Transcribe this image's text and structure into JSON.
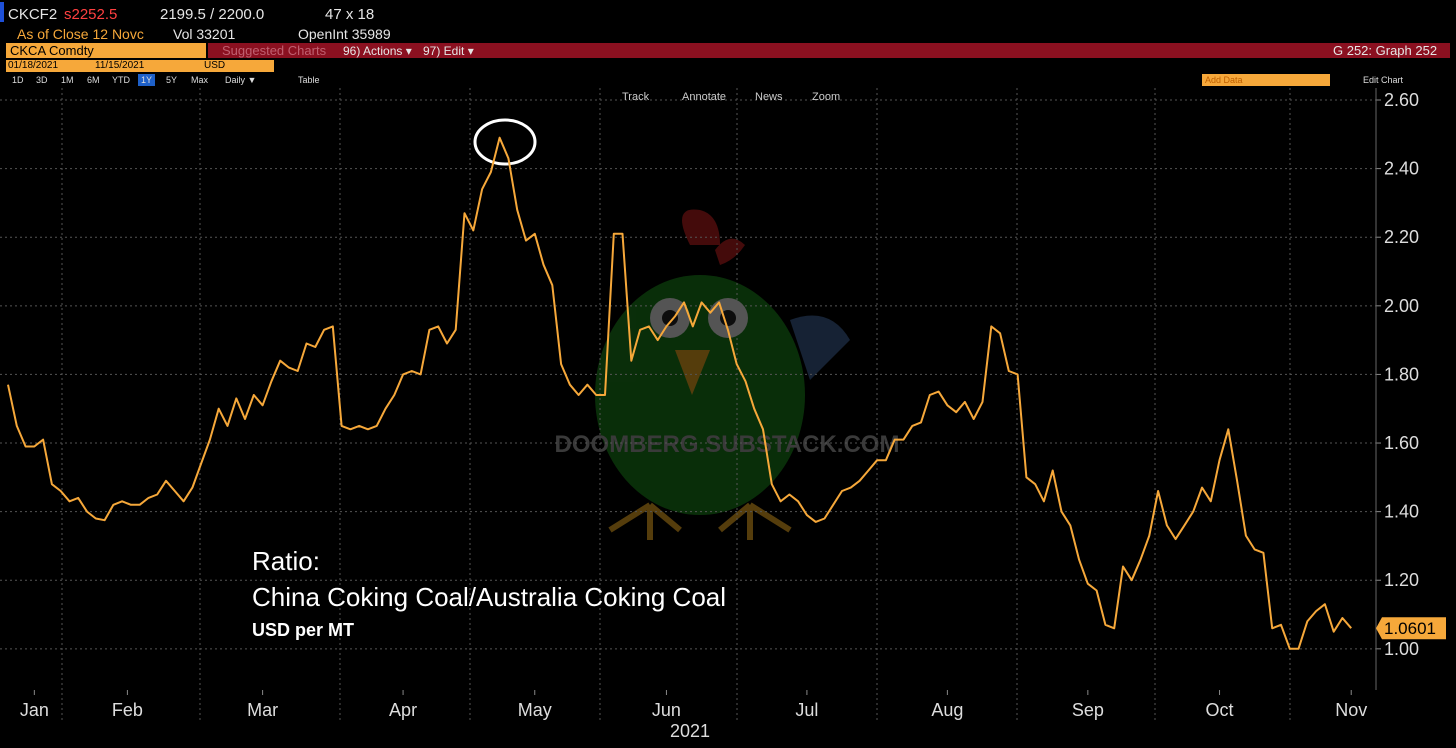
{
  "header": {
    "ticker": "CKCF2",
    "last": "s2252.5",
    "bid_ask": "2199.5 / 2200.0",
    "size": "47 x 18",
    "as_of": "As of Close 12 Novc",
    "vol": "Vol 33201",
    "open_int": "OpenInt 35989",
    "security": "CKCA Comdty",
    "suggested": "Suggested Charts",
    "actions": "96) Actions ▾",
    "edit": "97) Edit ▾",
    "graph": "G 252: Graph 252",
    "start_date": "01/18/2021",
    "end_date": "11/15/2021",
    "currency": "USD",
    "ranges": [
      "1D",
      "3D",
      "1M",
      "6M",
      "YTD",
      "1Y",
      "5Y",
      "Max"
    ],
    "period": "Daily ▼",
    "table": "Table",
    "add_data": "Add Data",
    "edit_chart": "Edit Chart"
  },
  "toolbar": [
    "Track",
    "Annotate",
    "News",
    "Zoom"
  ],
  "chart_data": {
    "type": "line",
    "annotation_title": "Ratio:",
    "title": "China Coking Coal/Australia Coking Coal",
    "subtitle": "USD per MT",
    "watermark": "DOOMBERG.SUBSTACK.COM",
    "xlabel": "2021",
    "color": "#f6a83a",
    "grid": true,
    "xlim": [
      0,
      154
    ],
    "xticks": [
      {
        "value": 3,
        "label": "Jan"
      },
      {
        "value": 13.6,
        "label": "Feb"
      },
      {
        "value": 29,
        "label": "Mar"
      },
      {
        "value": 45,
        "label": "Apr"
      },
      {
        "value": 60,
        "label": "May"
      },
      {
        "value": 75,
        "label": "Jun"
      },
      {
        "value": 91,
        "label": "Jul"
      },
      {
        "value": 107,
        "label": "Aug"
      },
      {
        "value": 123,
        "label": "Sep"
      },
      {
        "value": 138,
        "label": "Oct"
      },
      {
        "value": 153,
        "label": "Nov"
      }
    ],
    "ylim": [
      0.88,
      2.635
    ],
    "yticks": [
      {
        "value": 1,
        "label": "1.00"
      },
      {
        "value": 1.2,
        "label": "1.20"
      },
      {
        "value": 1.4,
        "label": "1.40"
      },
      {
        "value": 1.6,
        "label": "1.60"
      },
      {
        "value": 1.8,
        "label": "1.80"
      },
      {
        "value": 2,
        "label": "2.00"
      },
      {
        "value": 2.2,
        "label": "2.20"
      },
      {
        "value": 2.4,
        "label": "2.40"
      },
      {
        "value": 2.6,
        "label": "2.60"
      }
    ],
    "values": [
      1.77,
      1.65,
      1.59,
      1.59,
      1.61,
      1.48,
      1.46,
      1.43,
      1.44,
      1.4,
      1.38,
      1.375,
      1.42,
      1.43,
      1.42,
      1.42,
      1.44,
      1.45,
      1.49,
      1.46,
      1.43,
      1.47,
      1.54,
      1.61,
      1.7,
      1.65,
      1.73,
      1.67,
      1.74,
      1.71,
      1.78,
      1.84,
      1.82,
      1.81,
      1.89,
      1.88,
      1.93,
      1.94,
      1.65,
      1.64,
      1.65,
      1.64,
      1.65,
      1.7,
      1.74,
      1.8,
      1.81,
      1.8,
      1.93,
      1.94,
      1.89,
      1.93,
      2.27,
      2.22,
      2.34,
      2.39,
      2.49,
      2.43,
      2.28,
      2.19,
      2.21,
      2.12,
      2.06,
      1.83,
      1.77,
      1.74,
      1.77,
      1.74,
      1.74,
      2.21,
      2.21,
      1.84,
      1.93,
      1.94,
      1.9,
      1.94,
      1.97,
      2.01,
      1.94,
      2.01,
      1.98,
      2.01,
      1.93,
      1.83,
      1.78,
      1.7,
      1.64,
      1.48,
      1.43,
      1.45,
      1.43,
      1.39,
      1.37,
      1.38,
      1.42,
      1.46,
      1.47,
      1.49,
      1.52,
      1.55,
      1.55,
      1.61,
      1.61,
      1.65,
      1.66,
      1.74,
      1.75,
      1.71,
      1.69,
      1.72,
      1.67,
      1.72,
      1.94,
      1.92,
      1.81,
      1.8,
      1.5,
      1.48,
      1.43,
      1.52,
      1.4,
      1.36,
      1.26,
      1.19,
      1.17,
      1.07,
      1.06,
      1.24,
      1.2,
      1.26,
      1.33,
      1.46,
      1.36,
      1.32,
      1.36,
      1.4,
      1.47,
      1.43,
      1.55,
      1.64,
      1.49,
      1.33,
      1.29,
      1.28,
      1.06,
      1.07,
      1.0,
      1.0,
      1.08,
      1.11,
      1.13,
      1.05,
      1.09,
      1.0601
    ]
  }
}
